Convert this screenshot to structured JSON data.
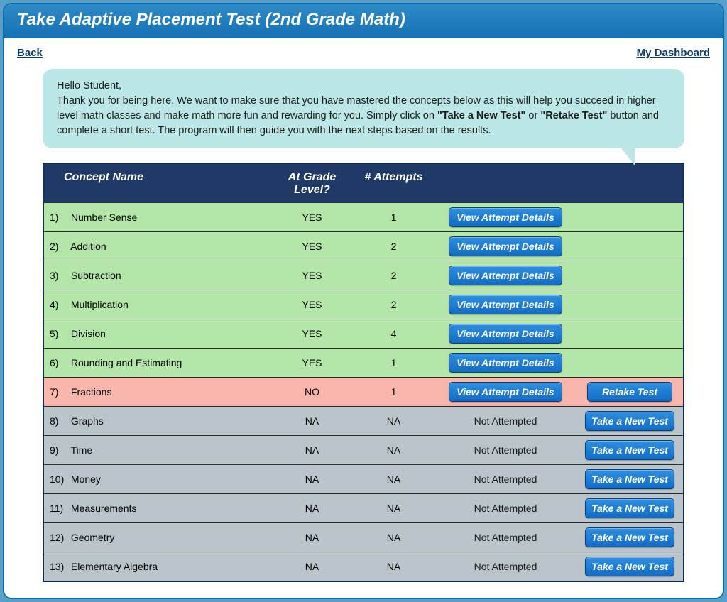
{
  "header": {
    "title": "Take Adaptive Placement Test (2nd Grade Math)"
  },
  "nav": {
    "back": "Back",
    "dashboard": "My Dashboard"
  },
  "intro": {
    "greeting": "Hello Student,",
    "body_before_bold1": "Thank you for being here. We want to make sure that you have mastered the concepts below as this will help you succeed in higher level math classes and make math more fun and rewarding for you. Simply click on ",
    "bold1": "\"Take a New Test\"",
    "between": " or ",
    "bold2": "\"Retake Test\"",
    "body_after_bold2": " button and complete a short test. The program will then guide you with the next steps based on the results."
  },
  "columns": {
    "concept": "Concept Name",
    "grade": "At Grade Level?",
    "attempts": "# Attempts"
  },
  "buttons": {
    "view_details": "View Attempt Details",
    "retake": "Retake Test",
    "new_test": "Take a New Test",
    "not_attempted": "Not Attempted"
  },
  "rows": [
    {
      "idx": "1)",
      "name": "Number Sense",
      "grade": "YES",
      "attempts": "1",
      "status": "green",
      "action": "details"
    },
    {
      "idx": "2)",
      "name": "Addition",
      "grade": "YES",
      "attempts": "2",
      "status": "green",
      "action": "details"
    },
    {
      "idx": "3)",
      "name": "Subtraction",
      "grade": "YES",
      "attempts": "2",
      "status": "green",
      "action": "details"
    },
    {
      "idx": "4)",
      "name": "Multiplication",
      "grade": "YES",
      "attempts": "2",
      "status": "green",
      "action": "details"
    },
    {
      "idx": "5)",
      "name": "Division",
      "grade": "YES",
      "attempts": "4",
      "status": "green",
      "action": "details"
    },
    {
      "idx": "6)",
      "name": "Rounding and Estimating",
      "grade": "YES",
      "attempts": "1",
      "status": "green",
      "action": "details"
    },
    {
      "idx": "7)",
      "name": "Fractions",
      "grade": "NO",
      "attempts": "1",
      "status": "pink",
      "action": "details_retake"
    },
    {
      "idx": "8)",
      "name": "Graphs",
      "grade": "NA",
      "attempts": "NA",
      "status": "grey",
      "action": "new"
    },
    {
      "idx": "9)",
      "name": "Time",
      "grade": "NA",
      "attempts": "NA",
      "status": "grey",
      "action": "new"
    },
    {
      "idx": "10)",
      "name": "Money",
      "grade": "NA",
      "attempts": "NA",
      "status": "grey",
      "action": "new"
    },
    {
      "idx": "11)",
      "name": "Measurements",
      "grade": "NA",
      "attempts": "NA",
      "status": "grey",
      "action": "new"
    },
    {
      "idx": "12)",
      "name": "Geometry",
      "grade": "NA",
      "attempts": "NA",
      "status": "grey",
      "action": "new"
    },
    {
      "idx": "13)",
      "name": "Elementary Algebra",
      "grade": "NA",
      "attempts": "NA",
      "status": "grey",
      "action": "new"
    }
  ],
  "colors": {
    "row_green": "#b3e6a8",
    "row_pink": "#f9b6ad",
    "row_grey": "#b9c5ca",
    "header_bg": "#1f3a66",
    "button_top": "#2f8fe0",
    "button_bottom": "#126cc4",
    "intro_bg": "#bce7e7"
  }
}
